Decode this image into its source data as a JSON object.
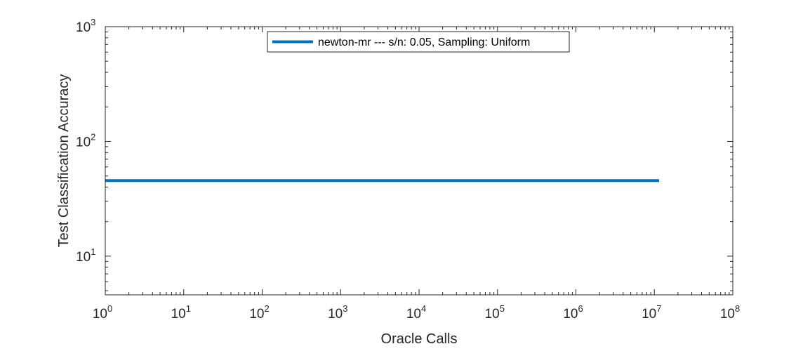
{
  "chart_data": {
    "type": "line",
    "title": "",
    "xlabel": "Oracle Calls",
    "ylabel": "Test Classification Accuracy",
    "xscale": "log",
    "yscale": "log",
    "xlim": [
      1,
      100000000
    ],
    "ylim": [
      4.6,
      1000
    ],
    "x_ticks": [
      {
        "base": "10",
        "exp": "0",
        "value": 1
      },
      {
        "base": "10",
        "exp": "1",
        "value": 10
      },
      {
        "base": "10",
        "exp": "2",
        "value": 100
      },
      {
        "base": "10",
        "exp": "3",
        "value": 1000
      },
      {
        "base": "10",
        "exp": "4",
        "value": 10000
      },
      {
        "base": "10",
        "exp": "5",
        "value": 100000
      },
      {
        "base": "10",
        "exp": "6",
        "value": 1000000
      },
      {
        "base": "10",
        "exp": "7",
        "value": 10000000
      },
      {
        "base": "10",
        "exp": "8",
        "value": 100000000
      }
    ],
    "y_ticks": [
      {
        "base": "10",
        "exp": "1",
        "value": 10
      },
      {
        "base": "10",
        "exp": "2",
        "value": 100
      },
      {
        "base": "10",
        "exp": "3",
        "value": 1000
      }
    ],
    "grid": false,
    "legend": "top-center",
    "series": [
      {
        "name": "newton-mr --- s/n: 0.05, Sampling: Uniform",
        "color": "#0072BD",
        "x": [
          1,
          11500000
        ],
        "y": [
          45.5,
          45.5
        ]
      }
    ]
  }
}
